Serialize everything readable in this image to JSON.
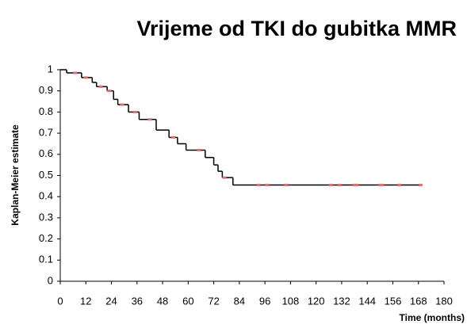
{
  "chart_data": {
    "type": "step",
    "title": "Vrijeme od TKI do gubitka MMR",
    "x_label": "Time (months)",
    "y_label": "Kaplan-Meier estimate",
    "xlim": [
      0,
      180
    ],
    "xticks": [
      0,
      12,
      24,
      36,
      48,
      60,
      72,
      84,
      96,
      108,
      120,
      132,
      144,
      156,
      168,
      180
    ],
    "ylim": [
      0,
      1
    ],
    "yticks": [
      0,
      0.1,
      0.2,
      0.3,
      0.4,
      0.5,
      0.6,
      0.7,
      0.8,
      0.9,
      1
    ],
    "series": [
      {
        "color": "#000000",
        "kind": "step",
        "x": [
          0,
          3,
          10,
          15,
          17,
          22,
          25,
          27,
          32,
          37,
          45,
          51,
          55,
          59,
          68,
          72,
          74,
          76,
          81,
          169
        ],
        "values": [
          1,
          0.985,
          0.963,
          0.94,
          0.92,
          0.9,
          0.86,
          0.835,
          0.8,
          0.765,
          0.715,
          0.68,
          0.65,
          0.62,
          0.585,
          0.55,
          0.52,
          0.49,
          0.455,
          0.455
        ]
      },
      {
        "color": "#e07070",
        "kind": "censor",
        "x": [
          7,
          12,
          19,
          23,
          29,
          35,
          42,
          53,
          65,
          77,
          93,
          97,
          106,
          127,
          131,
          138,
          139,
          150,
          151,
          159,
          169
        ],
        "values": [
          0.985,
          0.963,
          0.92,
          0.9,
          0.835,
          0.8,
          0.765,
          0.68,
          0.62,
          0.49,
          0.455,
          0.455,
          0.455,
          0.455,
          0.455,
          0.455,
          0.455,
          0.455,
          0.455,
          0.455,
          0.455
        ]
      }
    ]
  }
}
